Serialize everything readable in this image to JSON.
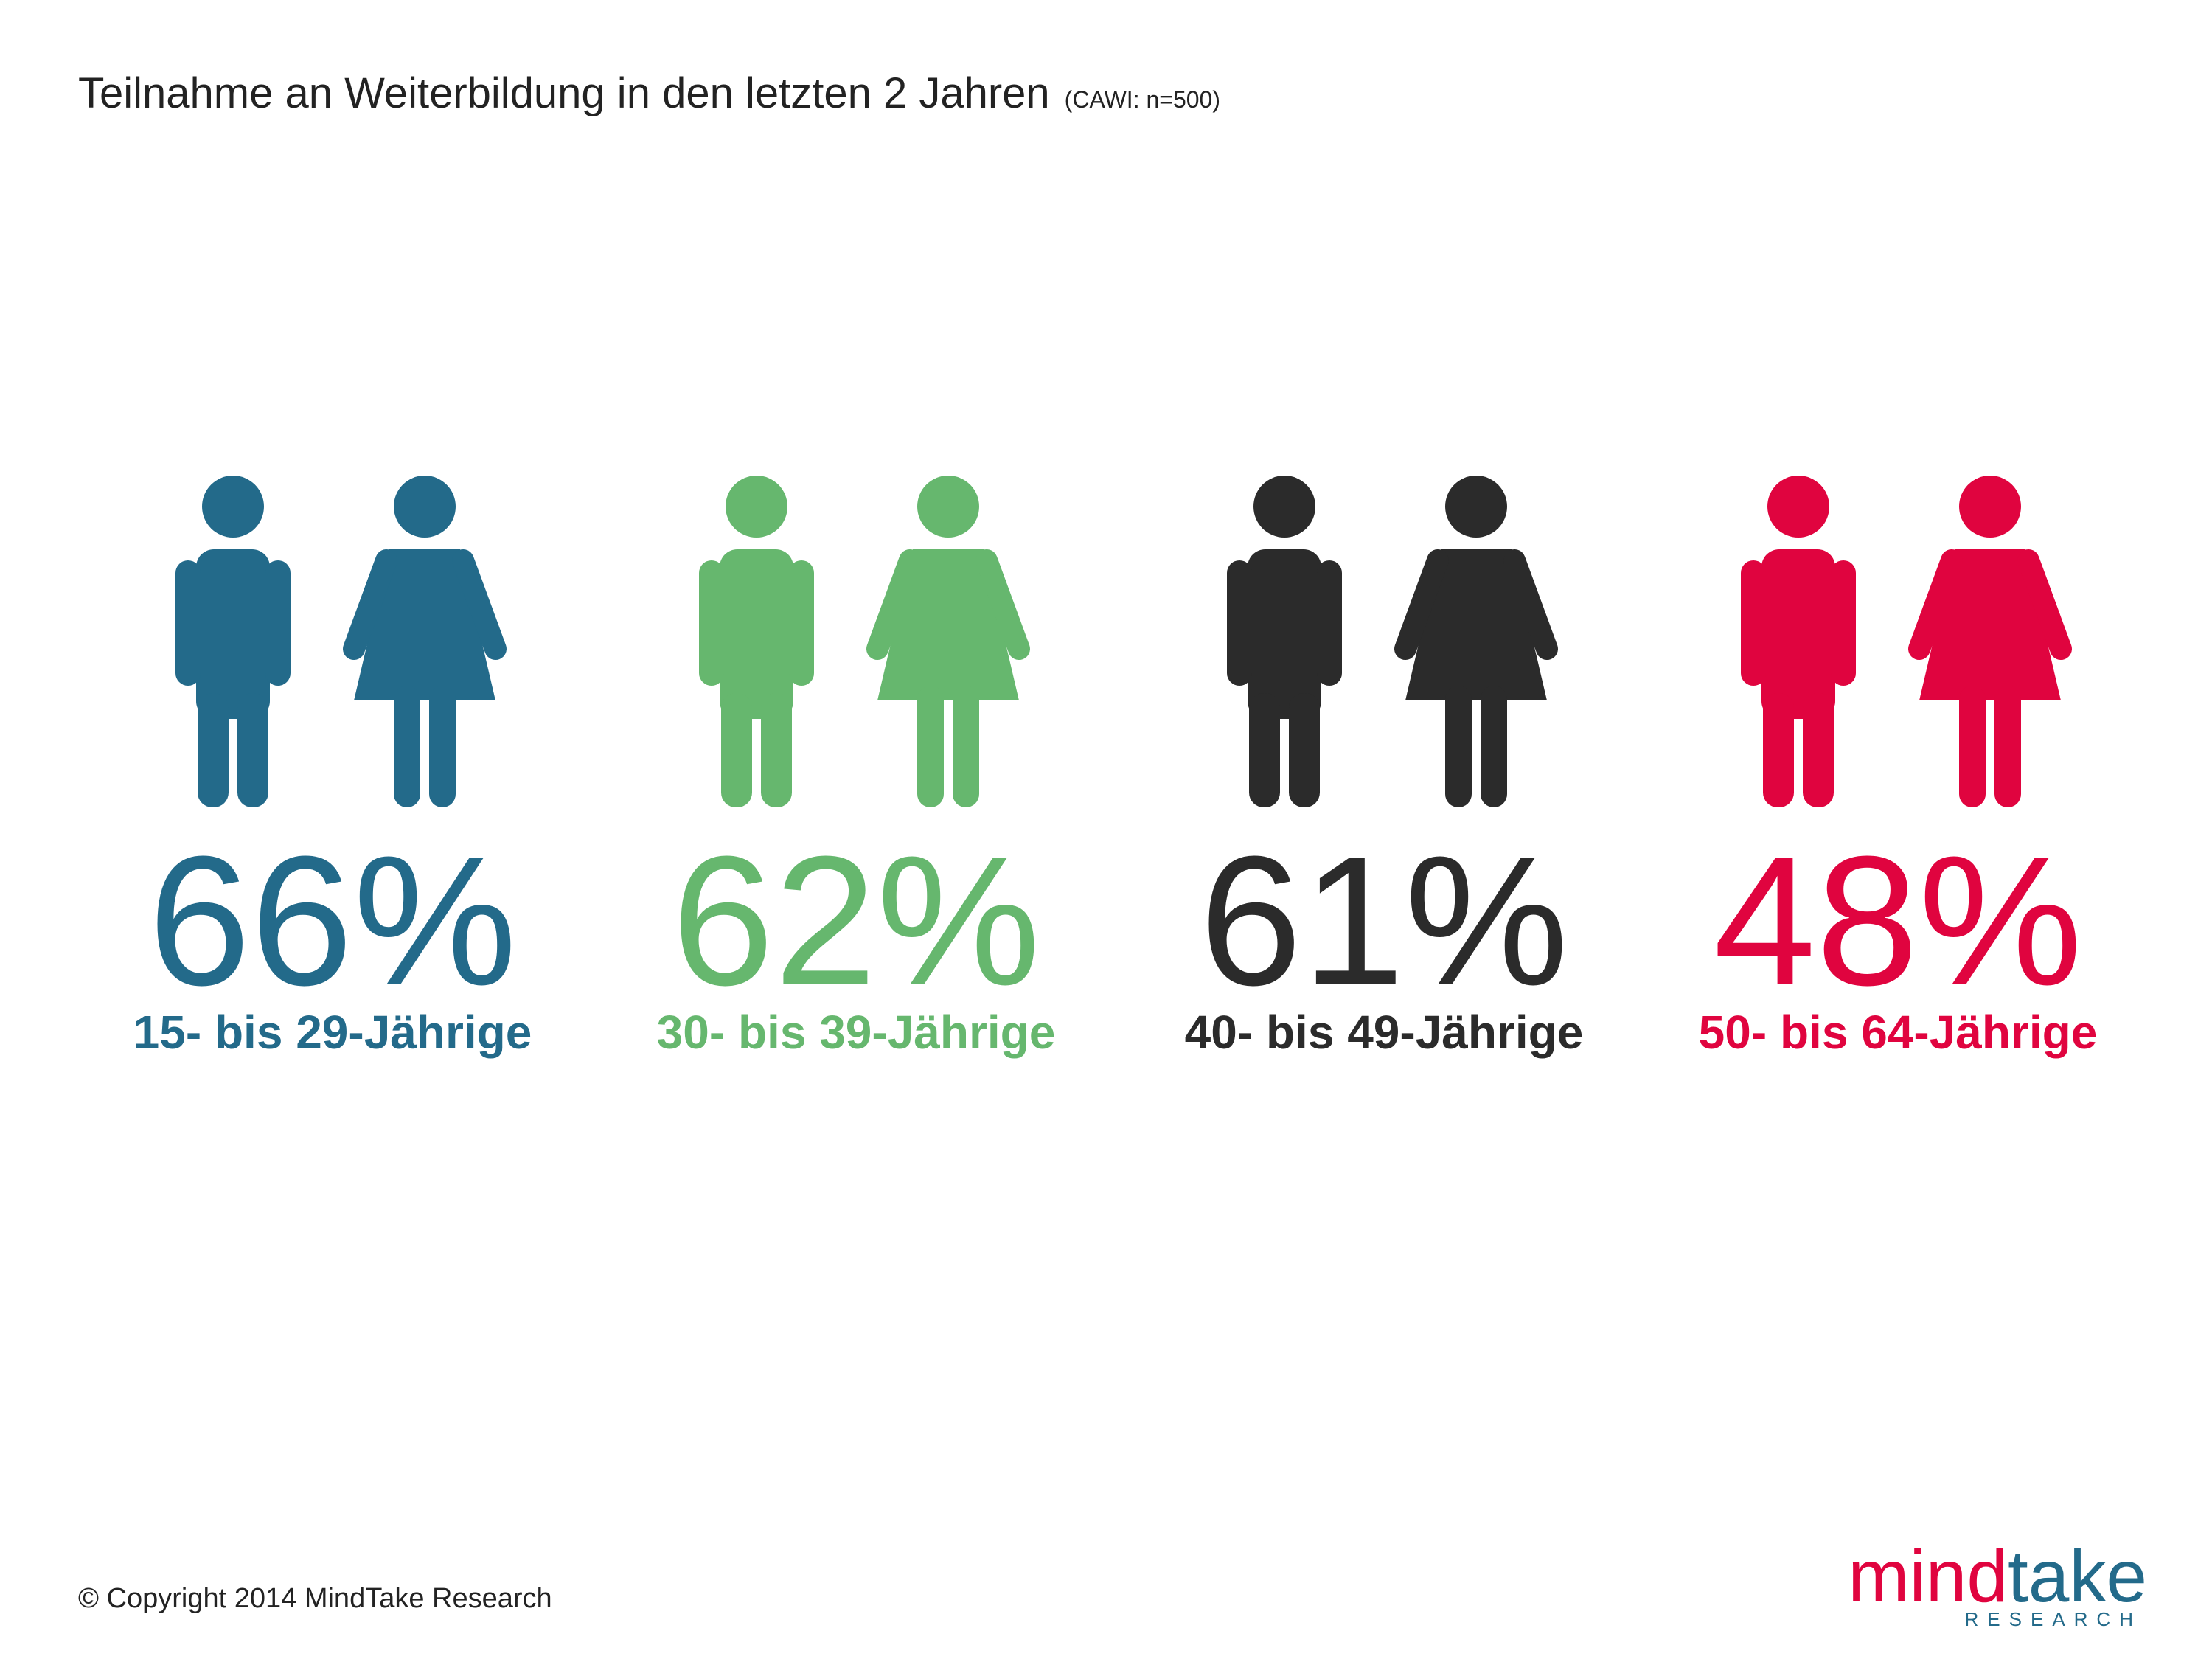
{
  "chart_data": {
    "type": "pictogram",
    "title": "Teilnahme an Weiterbildung in den letzten 2 Jahren",
    "subtitle": "(CAWI: n=500)",
    "categories": [
      "15- bis 29-Jährige",
      "30- bis 39-Jährige",
      "40- bis 49-Jährige",
      "50- bis 64-Jährige"
    ],
    "values": [
      66,
      62,
      61,
      48
    ],
    "value_labels": [
      "66%",
      "62%",
      "61%",
      "48%"
    ],
    "colors": [
      "#236a8a",
      "#66b76e",
      "#2b2b2b",
      "#e0043f"
    ]
  },
  "footer": {
    "copyright": "© Copyright 2014 MindTake Research",
    "logo_words": [
      "mind",
      "take"
    ],
    "logo_sub": "RESEARCH"
  }
}
